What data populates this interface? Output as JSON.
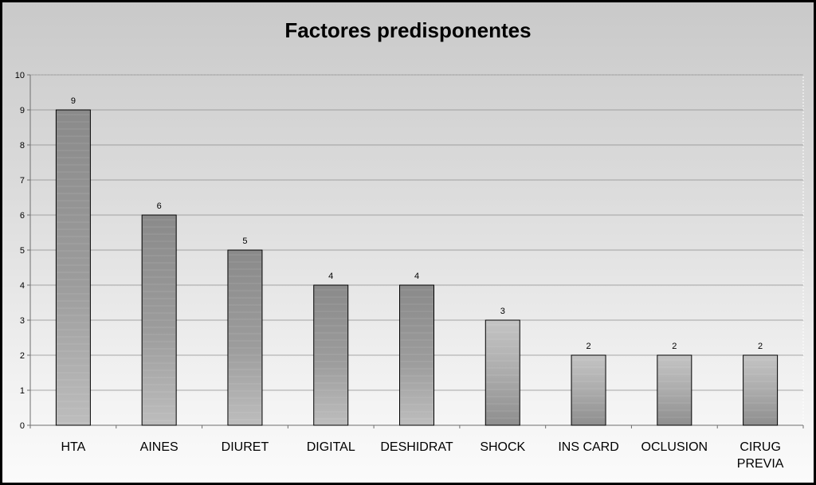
{
  "chart_data": {
    "type": "bar",
    "title": "Factores predisponentes",
    "categories": [
      "HTA",
      "AINES",
      "DIURET",
      "DIGITAL",
      "DESHIDRAT",
      "SHOCK",
      "INS CARD",
      "OCLUSION",
      "CIRUG PREVIA"
    ],
    "category_lines": [
      [
        "HTA"
      ],
      [
        "AINES"
      ],
      [
        "DIURET"
      ],
      [
        "DIGITAL"
      ],
      [
        "DESHIDRAT"
      ],
      [
        "SHOCK"
      ],
      [
        "INS CARD"
      ],
      [
        "OCLUSION"
      ],
      [
        "CIRUG",
        "PREVIA"
      ]
    ],
    "values": [
      9,
      6,
      5,
      4,
      4,
      3,
      2,
      2,
      2
    ],
    "data_labels": [
      "9",
      "6",
      "5",
      "4",
      "4",
      "3",
      "2",
      "2",
      "2"
    ],
    "yticks": [
      "0",
      "1",
      "2",
      "3",
      "4",
      "5",
      "6",
      "7",
      "8",
      "9",
      "10"
    ],
    "ylim": [
      0,
      10
    ],
    "xlabel": "",
    "ylabel": "",
    "grid": true,
    "legend": "none",
    "colors": {
      "grid": "#8c8c8c",
      "axis": "#6f6f6f",
      "bar_outline": "#000000",
      "bar_dark": "#8a8a8a",
      "bar_light": "#c4c4c4"
    }
  }
}
